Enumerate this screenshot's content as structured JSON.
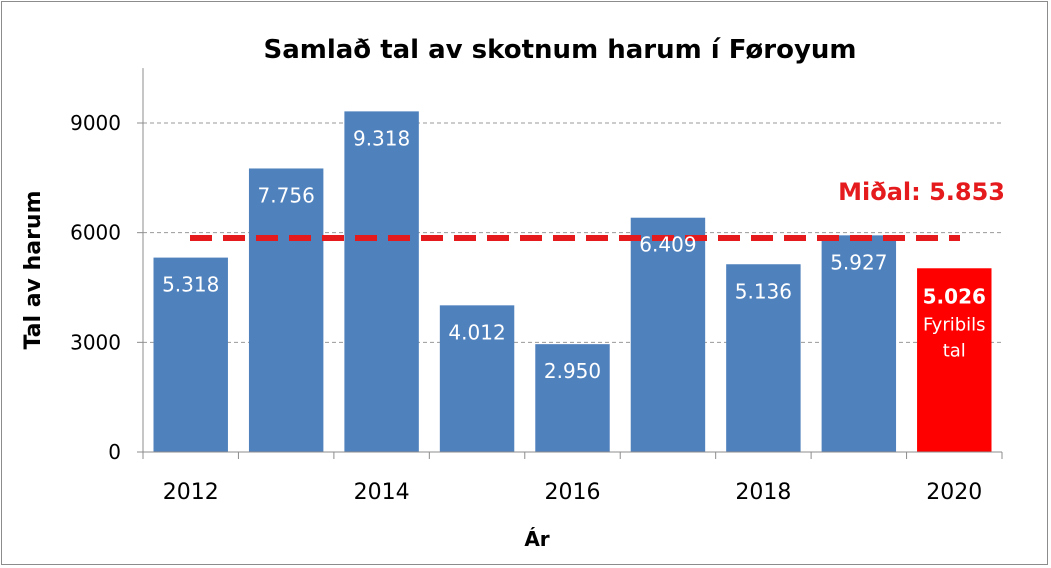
{
  "colors": {
    "bar": "#4f81bd",
    "highlight_bar": "#ff0000",
    "average_line": "#e41a1c",
    "grid": "#9a9a9a",
    "axis": "#8c8c8c"
  },
  "chart_data": {
    "type": "bar",
    "title": "Samlað tal av skotnum harum í Føroyum",
    "xlabel": "Ár",
    "ylabel": "Tal av harum",
    "ylim": [
      0,
      10500
    ],
    "yticks": [
      0,
      3000,
      6000,
      9000
    ],
    "ytick_labels": [
      "0",
      "3000",
      "6000",
      "9000"
    ],
    "grid": true,
    "categories": [
      "2012",
      "2013",
      "2014",
      "2015",
      "2016",
      "2017",
      "2018",
      "2019",
      "2020"
    ],
    "xtick_labels": [
      "2012",
      "",
      "2014",
      "",
      "2016",
      "",
      "2018",
      "",
      "2020"
    ],
    "values": [
      5318,
      7756,
      9318,
      4012,
      2950,
      6409,
      5136,
      5927,
      5026
    ],
    "data_labels": [
      "5.318",
      "7.756",
      "9.318",
      "4.012",
      "2.950",
      "6.409",
      "5.136",
      "5.927",
      "5.026"
    ],
    "highlight_index": 8,
    "highlight_note_lines": [
      "Fyribils",
      "tal"
    ],
    "average": {
      "value": 5853,
      "label": "Miðal: 5.853"
    }
  }
}
